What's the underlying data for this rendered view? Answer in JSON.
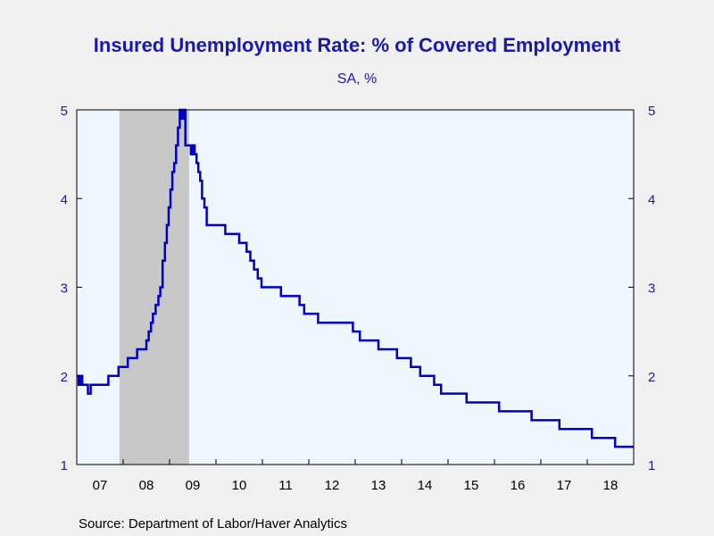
{
  "chart_data": {
    "type": "line",
    "title": "Insured Unemployment Rate: % of Covered Employment",
    "subtitle": "SA, %",
    "source": "Source:  Department of Labor/Haver Analytics",
    "x_tick_labels": [
      "07",
      "08",
      "09",
      "10",
      "11",
      "12",
      "13",
      "14",
      "15",
      "16",
      "17",
      "18"
    ],
    "y_ticks": [
      1,
      2,
      3,
      4,
      5
    ],
    "y_tick_labels": [
      "1",
      "2",
      "3",
      "4",
      "5"
    ],
    "ylim": [
      1,
      5
    ],
    "xlim": [
      2007.0,
      2019.0
    ],
    "grid": false,
    "recession_shading": {
      "start": 2007.92,
      "end": 2009.42
    },
    "colors": {
      "line": "#0000c0",
      "recession": "#c8c8c8",
      "plot_bg": "#eef6ff",
      "text": "#1a1aa8"
    },
    "series": [
      {
        "x": [
          2007.0,
          2007.04,
          2007.08,
          2007.12,
          2007.2,
          2007.24,
          2007.3,
          2007.4,
          2007.55,
          2007.68,
          2007.72,
          2007.8,
          2007.9,
          2007.94,
          2008.05,
          2008.1,
          2008.2,
          2008.3,
          2008.42,
          2008.5,
          2008.55,
          2008.6,
          2008.64,
          2008.7,
          2008.76,
          2008.8,
          2008.85,
          2008.9,
          2008.94,
          2008.98,
          2009.02,
          2009.06,
          2009.1,
          2009.14,
          2009.18,
          2009.22,
          2009.26,
          2009.3,
          2009.34,
          2009.38,
          2009.42,
          2009.46,
          2009.5,
          2009.54,
          2009.58,
          2009.62,
          2009.66,
          2009.7,
          2009.75,
          2009.8,
          2009.85,
          2009.9,
          2010.0,
          2010.2,
          2010.3,
          2010.4,
          2010.5,
          2010.58,
          2010.66,
          2010.74,
          2010.82,
          2010.9,
          2010.98,
          2011.06,
          2011.2,
          2011.4,
          2011.6,
          2011.8,
          2011.9,
          2012.0,
          2012.2,
          2012.4,
          2012.6,
          2012.8,
          2012.95,
          2013.1,
          2013.3,
          2013.5,
          2013.7,
          2013.9,
          2014.05,
          2014.2,
          2014.4,
          2014.7,
          2014.85,
          2015.0,
          2015.4,
          2015.8,
          2016.1,
          2016.4,
          2016.6,
          2016.8,
          2017.0,
          2017.4,
          2017.7,
          2017.9,
          2018.1,
          2018.4,
          2018.6,
          2018.7,
          2018.8,
          2018.9,
          2018.97
        ],
        "y": [
          2.0,
          1.9,
          2.0,
          1.9,
          1.9,
          1.8,
          1.9,
          1.9,
          1.9,
          2.0,
          2.0,
          2.0,
          2.1,
          2.1,
          2.1,
          2.2,
          2.2,
          2.3,
          2.3,
          2.4,
          2.5,
          2.6,
          2.7,
          2.8,
          2.9,
          3.0,
          3.3,
          3.5,
          3.7,
          3.9,
          4.1,
          4.3,
          4.4,
          4.6,
          4.8,
          5.0,
          4.9,
          5.0,
          4.6,
          4.6,
          4.6,
          4.5,
          4.6,
          4.5,
          4.4,
          4.3,
          4.2,
          4.0,
          3.9,
          3.7,
          3.7,
          3.7,
          3.7,
          3.6,
          3.6,
          3.6,
          3.5,
          3.5,
          3.4,
          3.3,
          3.2,
          3.1,
          3.0,
          3.0,
          3.0,
          2.9,
          2.9,
          2.8,
          2.7,
          2.7,
          2.6,
          2.6,
          2.6,
          2.6,
          2.5,
          2.4,
          2.4,
          2.3,
          2.3,
          2.2,
          2.2,
          2.1,
          2.0,
          1.9,
          1.8,
          1.8,
          1.7,
          1.7,
          1.6,
          1.6,
          1.6,
          1.5,
          1.5,
          1.4,
          1.4,
          1.4,
          1.3,
          1.3,
          1.2,
          1.2,
          1.2,
          1.2,
          1.2
        ]
      }
    ]
  }
}
